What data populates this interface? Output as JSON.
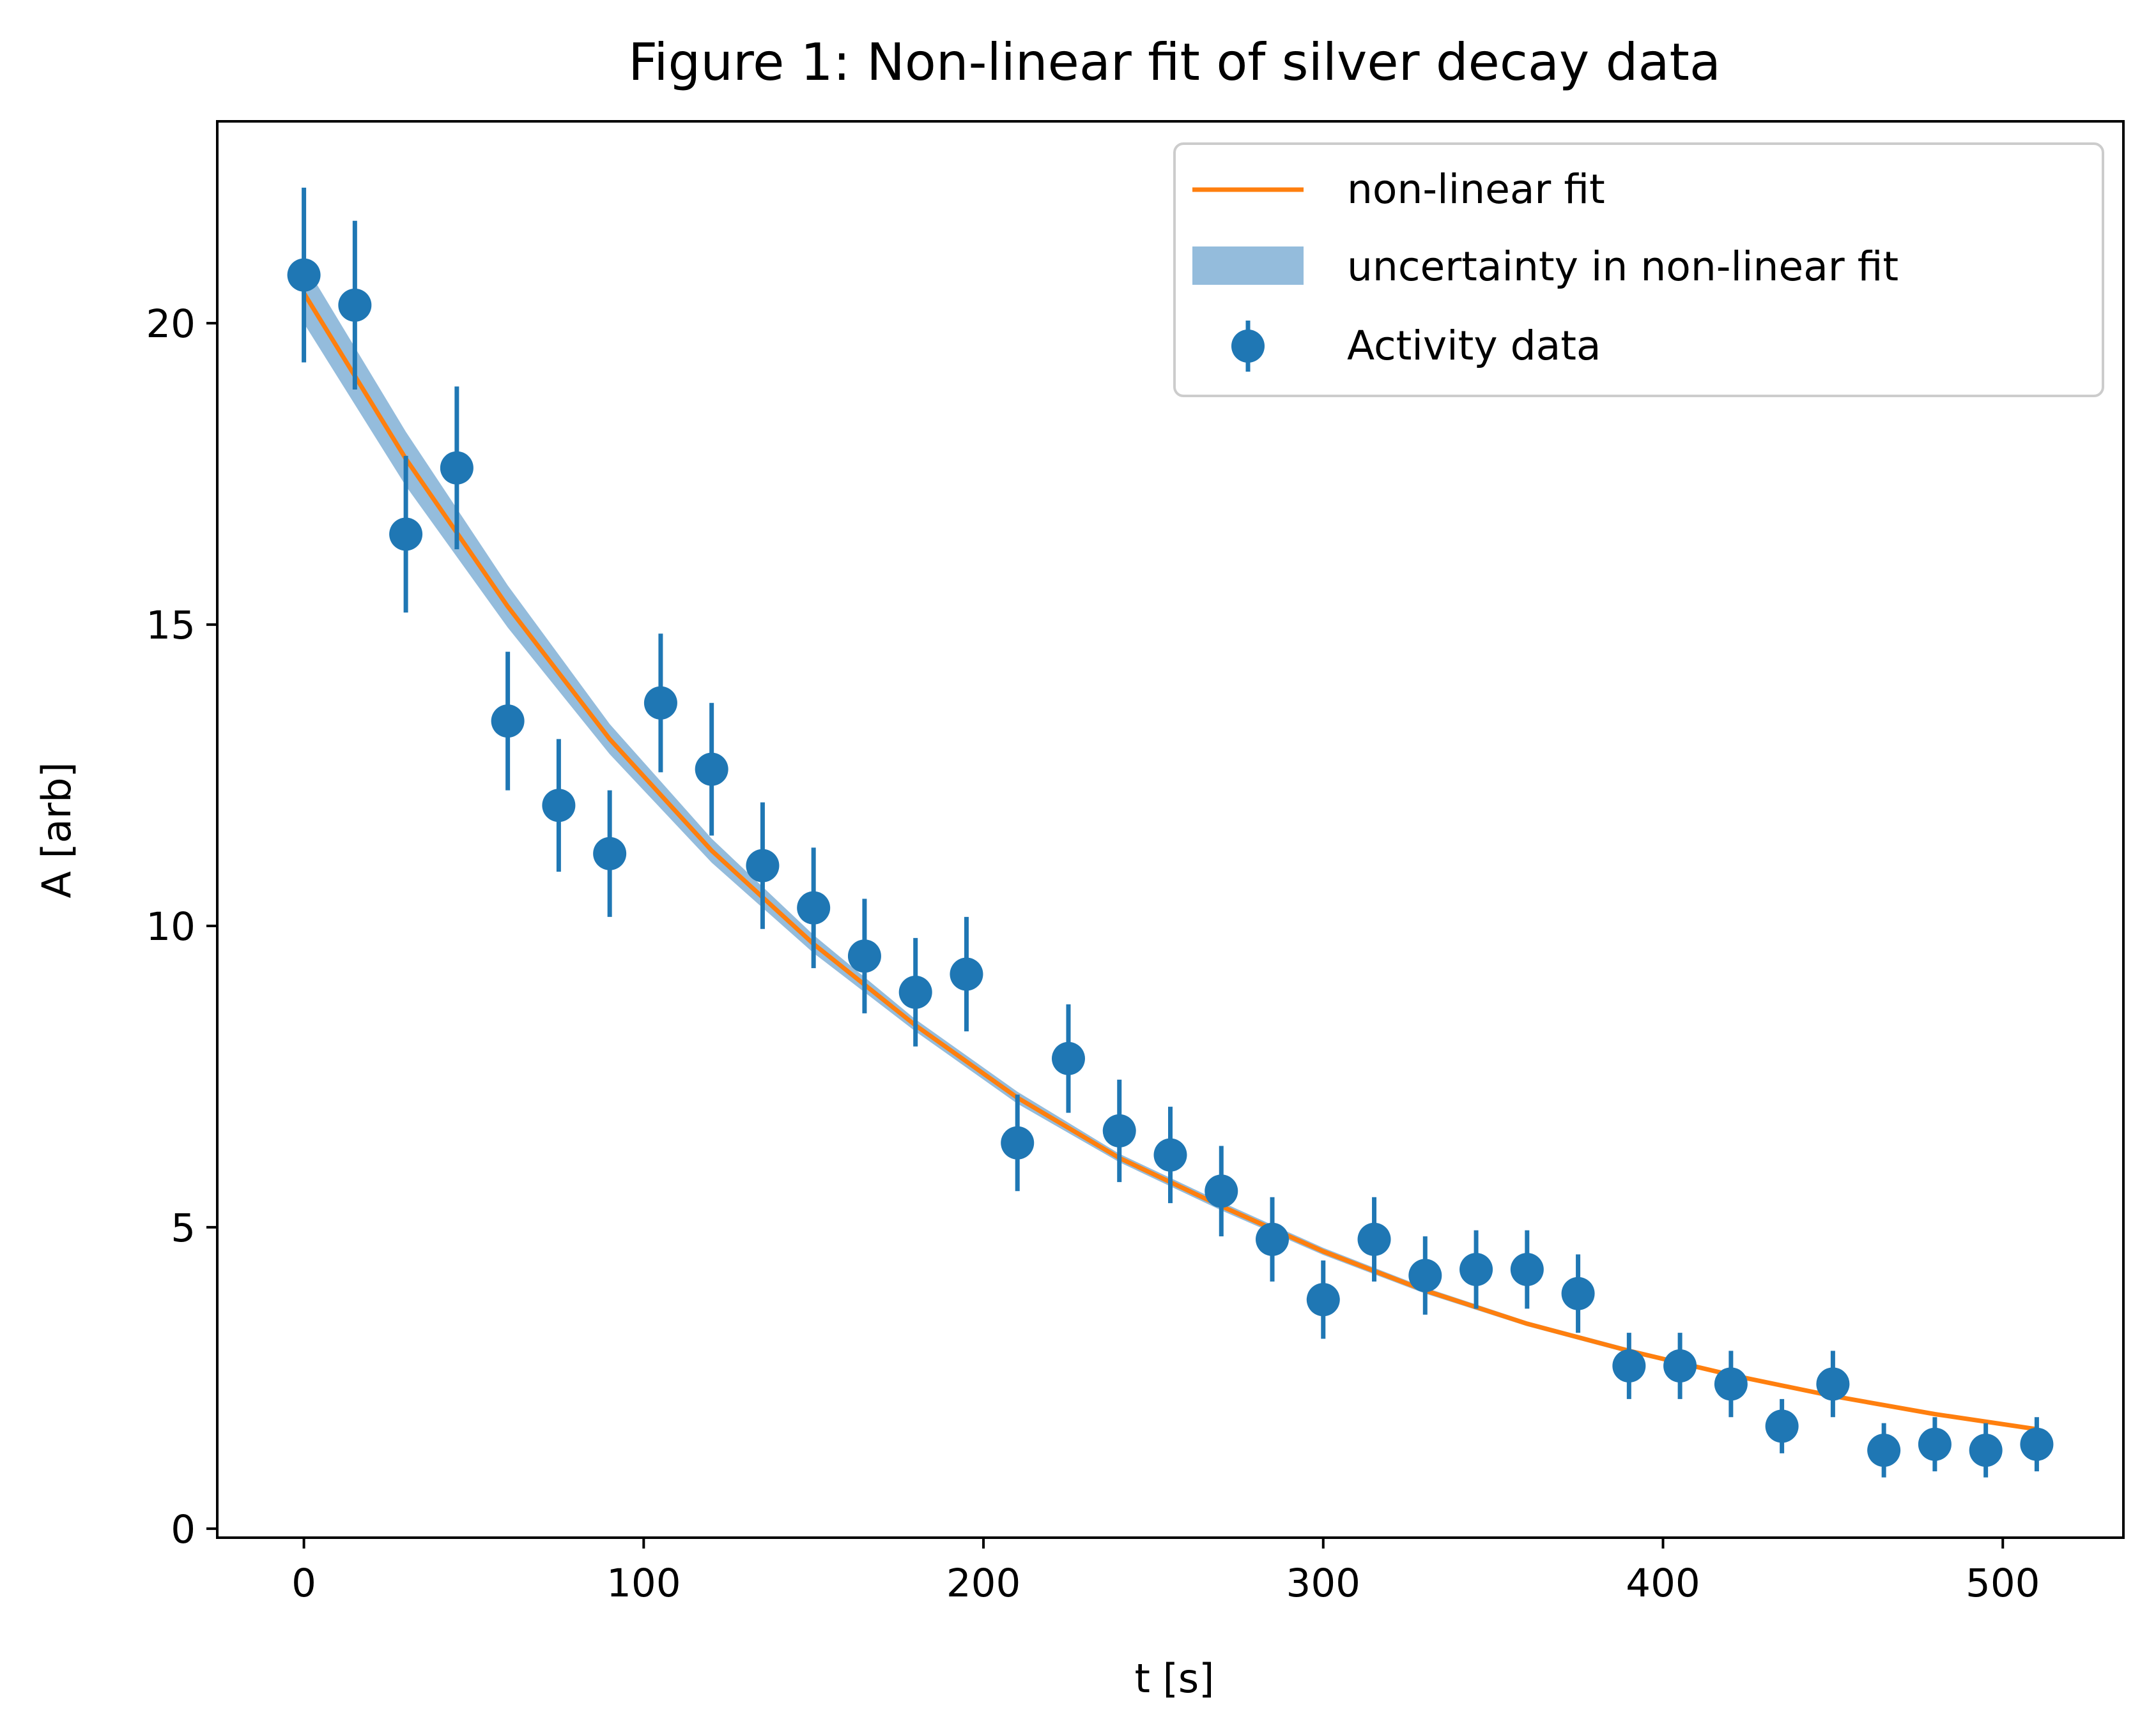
{
  "chart_data": {
    "type": "scatter",
    "title": "Figure 1: Non-linear fit of silver decay data",
    "xlabel": "t [s]",
    "ylabel": "A [arb]",
    "xlim": [
      -25.5,
      535.5
    ],
    "ylim": [
      -0.15,
      23.35
    ],
    "xticks": [
      0,
      100,
      200,
      300,
      400,
      500
    ],
    "yticks": [
      0,
      5,
      10,
      15,
      20
    ],
    "grid": false,
    "legend_position": "top-right",
    "colors": {
      "data": "#1f77b4",
      "fit": "#ff7f0e",
      "band": "#94bcdc"
    },
    "series": [
      {
        "name": "Activity data",
        "kind": "errorbar",
        "x": [
          0,
          15,
          30,
          45,
          60,
          75,
          90,
          105,
          120,
          135,
          150,
          165,
          180,
          195,
          210,
          225,
          240,
          255,
          270,
          285,
          300,
          315,
          330,
          345,
          360,
          375,
          390,
          405,
          420,
          435,
          450,
          465,
          480,
          495,
          510
        ],
        "y": [
          20.8,
          20.3,
          16.5,
          17.6,
          13.4,
          12.0,
          11.2,
          13.7,
          12.6,
          11.0,
          10.3,
          9.5,
          8.9,
          9.2,
          6.4,
          7.8,
          6.6,
          6.2,
          5.6,
          4.8,
          3.8,
          4.8,
          4.2,
          4.3,
          4.3,
          3.9,
          2.7,
          2.7,
          2.4,
          1.7,
          2.4,
          1.3,
          1.4,
          1.3,
          1.4
        ],
        "yerr": [
          1.45,
          1.4,
          1.3,
          1.35,
          1.15,
          1.1,
          1.05,
          1.15,
          1.1,
          1.05,
          1.0,
          0.95,
          0.9,
          0.95,
          0.8,
          0.9,
          0.85,
          0.8,
          0.75,
          0.7,
          0.65,
          0.7,
          0.65,
          0.65,
          0.65,
          0.65,
          0.55,
          0.55,
          0.55,
          0.45,
          0.55,
          0.45,
          0.45,
          0.45,
          0.45
        ]
      },
      {
        "name": "non-linear fit",
        "kind": "line",
        "x": [
          0,
          30,
          60,
          90,
          120,
          150,
          180,
          210,
          240,
          270,
          300,
          330,
          360,
          390,
          420,
          450,
          480,
          510
        ],
        "y": [
          20.5,
          17.75,
          15.3,
          13.1,
          11.25,
          9.7,
          8.35,
          7.15,
          6.15,
          5.35,
          4.6,
          3.95,
          3.4,
          2.95,
          2.55,
          2.2,
          1.9,
          1.65
        ]
      },
      {
        "name": "uncertainty in non-linear fit",
        "kind": "band",
        "x": [
          0,
          30,
          60,
          90,
          120,
          150,
          180,
          210,
          240,
          270,
          300,
          330,
          360,
          390,
          420,
          450,
          480,
          510
        ],
        "lower": [
          20.0,
          17.3,
          14.95,
          12.85,
          11.05,
          9.55,
          8.25,
          7.05,
          6.08,
          5.28,
          4.54,
          3.9,
          3.36,
          2.91,
          2.52,
          2.17,
          1.87,
          1.62
        ],
        "upper": [
          21.0,
          18.2,
          15.65,
          13.35,
          11.45,
          9.85,
          8.45,
          7.25,
          6.22,
          5.42,
          4.66,
          4.0,
          3.44,
          2.99,
          2.58,
          2.23,
          1.93,
          1.68
        ]
      }
    ],
    "legend": [
      "non-linear fit",
      "uncertainty in non-linear fit",
      "Activity data"
    ]
  }
}
